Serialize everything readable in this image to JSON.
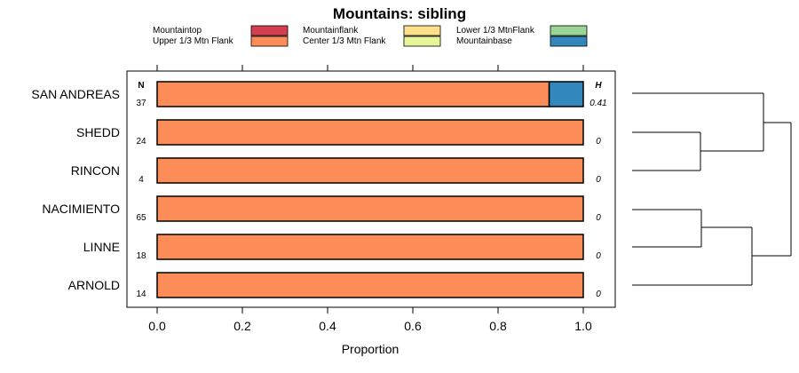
{
  "chart_data": {
    "type": "bar",
    "orientation": "horizontal",
    "stacked": true,
    "title": "Mountains: sibling",
    "xlabel": "Proportion",
    "ylabel": "",
    "xlim": [
      0,
      1
    ],
    "xticks": [
      "0.0",
      "0.2",
      "0.4",
      "0.6",
      "0.8",
      "1.0"
    ],
    "xtick_values": [
      0,
      0.2,
      0.4,
      0.6,
      0.8,
      1.0
    ],
    "n_header": "N",
    "h_header": "H",
    "categories": [
      "SAN ANDREAS",
      "SHEDD",
      "RINCON",
      "NACIMIENTO",
      "LINNE",
      "ARNOLD"
    ],
    "n": [
      "37",
      "24",
      "4",
      "65",
      "18",
      "14"
    ],
    "h": [
      "0.41",
      "0",
      "0",
      "0",
      "0",
      "0"
    ],
    "series": [
      {
        "name": "Mountaintop",
        "color": "#d53e4f",
        "values": [
          0,
          0,
          0,
          0,
          0,
          0
        ]
      },
      {
        "name": "Mountainflank",
        "color": "#fee08b",
        "values": [
          0,
          0,
          0,
          0,
          0,
          0
        ]
      },
      {
        "name": "Lower 1/3 MtnFlank",
        "color": "#99d594",
        "values": [
          0,
          0,
          0,
          0,
          0,
          0
        ]
      },
      {
        "name": "Upper 1/3 Mtn Flank",
        "color": "#fc8d59",
        "values": [
          0.92,
          1,
          1,
          1,
          1,
          1
        ]
      },
      {
        "name": "Center 1/3 Mtn Flank",
        "color": "#e6f598",
        "values": [
          0,
          0,
          0,
          0,
          0,
          0
        ]
      },
      {
        "name": "Mountainbase",
        "color": "#3288bd",
        "values": [
          0.08,
          0,
          0,
          0,
          0,
          0
        ]
      }
    ],
    "legend_position": "top",
    "dendrogram": "right"
  }
}
